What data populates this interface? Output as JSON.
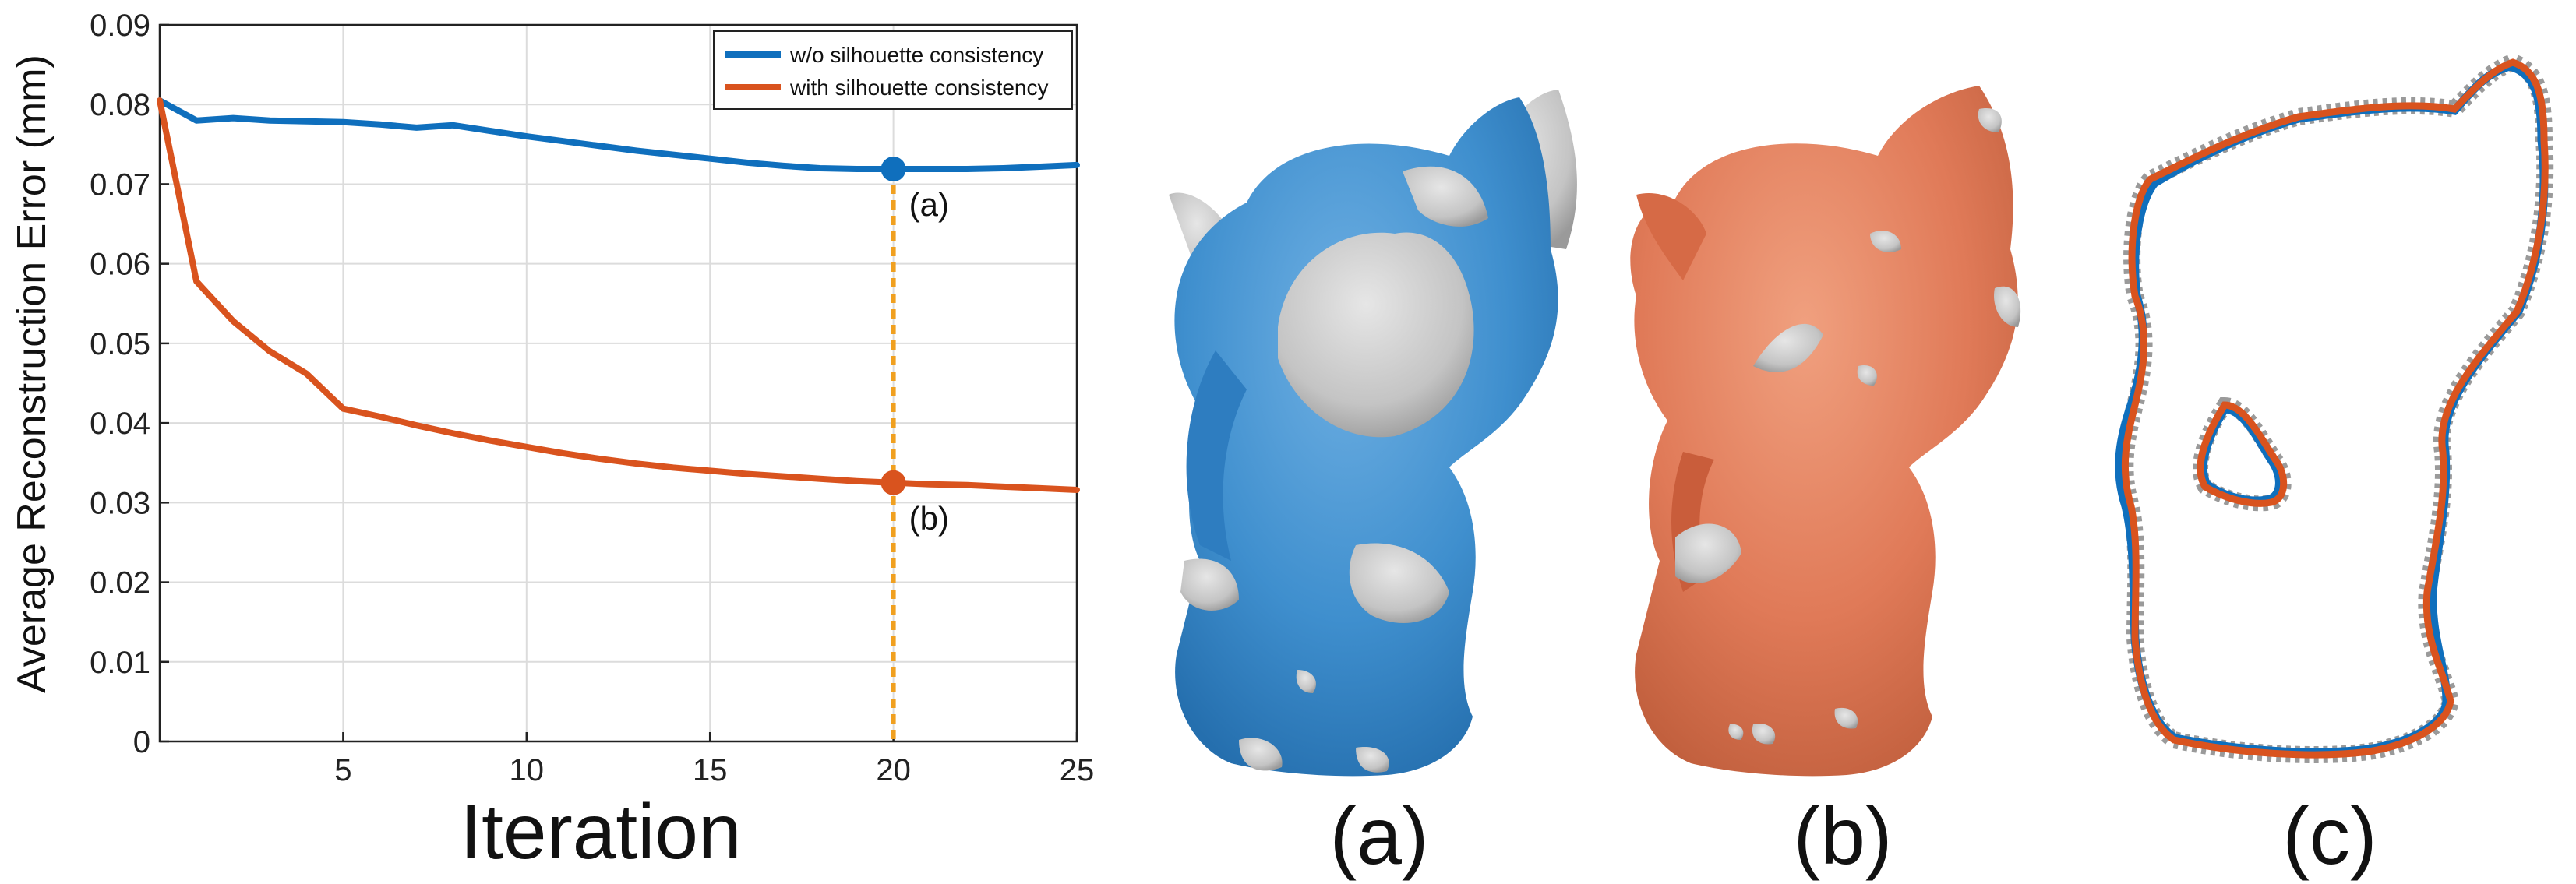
{
  "chart_data": {
    "type": "line",
    "xlabel": "Iteration",
    "ylabel": "Average Reconstruction Error (mm)",
    "xlim": [
      0,
      25
    ],
    "ylim": [
      0,
      0.09
    ],
    "x_ticks": [
      "5",
      "10",
      "15",
      "20",
      "25"
    ],
    "y_ticks": [
      "0",
      "0.01",
      "0.02",
      "0.03",
      "0.04",
      "0.05",
      "0.06",
      "0.07",
      "0.08",
      "0.09"
    ],
    "grid": true,
    "legend_position": "top-right",
    "series": [
      {
        "name": "w/o silhouette consistency",
        "color": "#0f6fbd",
        "x": [
          0,
          1,
          2,
          3,
          4,
          5,
          6,
          7,
          8,
          9,
          10,
          11,
          12,
          13,
          14,
          15,
          16,
          17,
          18,
          19,
          20,
          21,
          22,
          23,
          24,
          25
        ],
        "y": [
          0.0805,
          0.078,
          0.0783,
          0.078,
          0.0779,
          0.0778,
          0.0775,
          0.0771,
          0.0774,
          0.0767,
          0.076,
          0.0754,
          0.0748,
          0.0742,
          0.0737,
          0.0732,
          0.0727,
          0.0723,
          0.072,
          0.0719,
          0.0719,
          0.0719,
          0.0719,
          0.072,
          0.0722,
          0.0724
        ]
      },
      {
        "name": "with silhouette consistency",
        "color": "#d9531e",
        "x": [
          0,
          1,
          2,
          3,
          4,
          5,
          6,
          7,
          8,
          9,
          10,
          11,
          12,
          13,
          14,
          15,
          16,
          17,
          18,
          19,
          20,
          21,
          22,
          23,
          24,
          25
        ],
        "y": [
          0.0805,
          0.0578,
          0.0528,
          0.049,
          0.0462,
          0.0418,
          0.0408,
          0.0397,
          0.0387,
          0.0378,
          0.037,
          0.0362,
          0.0355,
          0.0349,
          0.0344,
          0.034,
          0.0336,
          0.0333,
          0.033,
          0.0327,
          0.0325,
          0.0323,
          0.0322,
          0.032,
          0.0318,
          0.0316
        ]
      }
    ],
    "markers": [
      {
        "label": "(a)",
        "x": 20,
        "y": 0.0719,
        "color": "#0f6fbd"
      },
      {
        "label": "(b)",
        "x": 20,
        "y": 0.0325,
        "color": "#d9531e"
      }
    ],
    "guide_line_color": "#f0a020"
  },
  "panels": [
    {
      "label": "(a)"
    },
    {
      "label": "(b)"
    },
    {
      "label": "(c)"
    }
  ],
  "colors": {
    "blue": "#0f6fbd",
    "orange": "#d9531e",
    "mesh_blue": "#3f8fce",
    "mesh_orange": "#e07a58",
    "mesh_gray": "#c8c8c8",
    "outline_gray": "#999999"
  }
}
